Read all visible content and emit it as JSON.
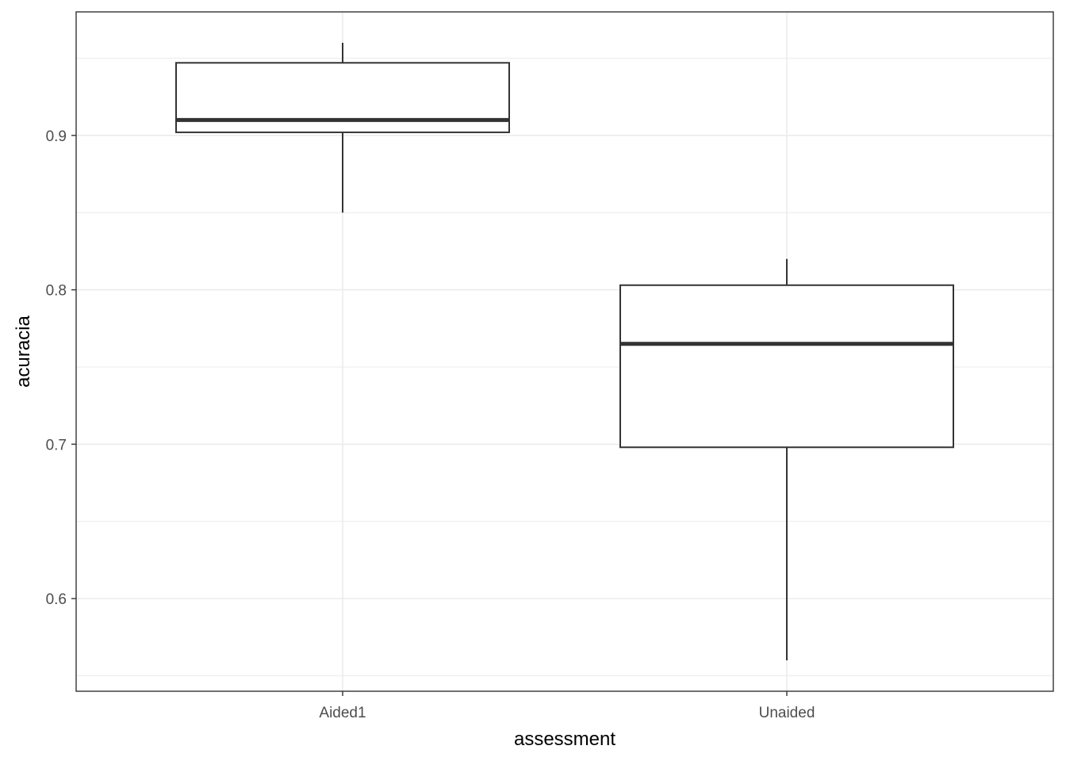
{
  "chart_data": {
    "type": "boxplot",
    "title": "",
    "xlabel": "assessment",
    "ylabel": "acuracia",
    "categories": [
      "Aided1",
      "Unaided"
    ],
    "boxes": [
      {
        "category": "Aided1",
        "whisker_low": 0.85,
        "q1": 0.902,
        "median": 0.91,
        "q3": 0.947,
        "whisker_high": 0.96
      },
      {
        "category": "Unaided",
        "whisker_low": 0.56,
        "q1": 0.698,
        "median": 0.765,
        "q3": 0.803,
        "whisker_high": 0.82
      }
    ],
    "y_ticks": [
      0.6,
      0.7,
      0.8,
      0.9
    ],
    "y_tick_labels": [
      "0.6",
      "0.7",
      "0.8",
      "0.9"
    ],
    "ylim": [
      0.54,
      0.98
    ],
    "grid": true,
    "legend": "none",
    "colors": {
      "box_stroke": "#333333",
      "median": "#333333",
      "grid": "#ebebeb",
      "panel_border": "#333333"
    }
  }
}
